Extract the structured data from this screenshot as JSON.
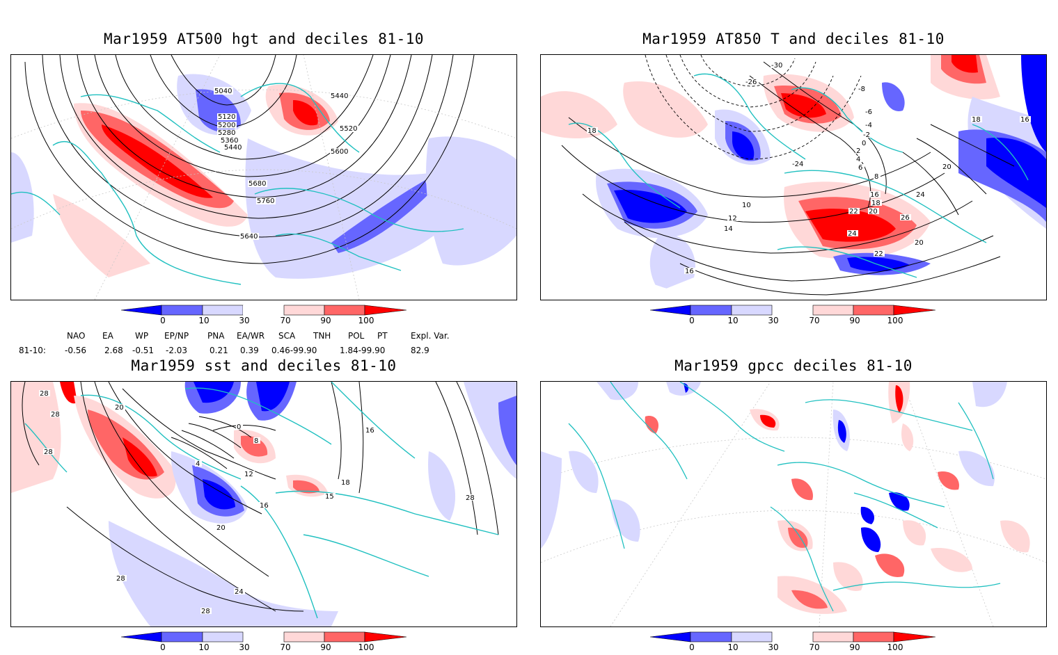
{
  "panels": {
    "p1": {
      "title": "Mar1959 AT500 hgt and deciles 81-10",
      "contour_labels": [
        "5040",
        "5120",
        "5200",
        "5280",
        "5360",
        "5440",
        "5440",
        "5520",
        "5600",
        "5680",
        "5760",
        "5640"
      ]
    },
    "p2": {
      "title": "Mar1959 AT850 T and deciles 81-10",
      "contour_labels": [
        "-24",
        "-30",
        "-26",
        "-8",
        "-6",
        "-4",
        "-2",
        "0",
        "2",
        "4",
        "6",
        "8",
        "10",
        "12",
        "14",
        "16",
        "18",
        "20",
        "22",
        "24",
        "26",
        "16",
        "18",
        "18",
        "16",
        "20",
        "24",
        "22",
        "20"
      ]
    },
    "p3": {
      "title": "Mar1959 sst and deciles 81-10",
      "contour_labels": [
        "28",
        "28",
        "28",
        "20",
        "0",
        "8",
        "4",
        "12",
        "16",
        "20",
        "24",
        "28",
        "28",
        "15",
        "18",
        "16",
        "28"
      ]
    },
    "p4": {
      "title": "Mar1959 gpcc deciles 81-10"
    }
  },
  "colorbar": {
    "ticks": [
      "0",
      "10",
      "30",
      "70",
      "90",
      "100"
    ],
    "colors": [
      "#0000ff",
      "#6666ff",
      "#d8d8ff",
      "#ffd8d8",
      "#ff6666",
      "#ff0000"
    ]
  },
  "indices": {
    "row_label": "81-10:",
    "headers": [
      "NAO",
      "EA",
      "WP",
      "EP/NP",
      "PNA",
      "EA/WR",
      "SCA",
      "TNH",
      "POL",
      "PT",
      "Expl. Var."
    ],
    "values": [
      "-0.56",
      "2.68",
      "-0.51",
      "-2.03",
      "0.21",
      "0.39",
      "0.46-99.90",
      "",
      "1.84-99.90",
      "",
      "82.9"
    ]
  }
}
